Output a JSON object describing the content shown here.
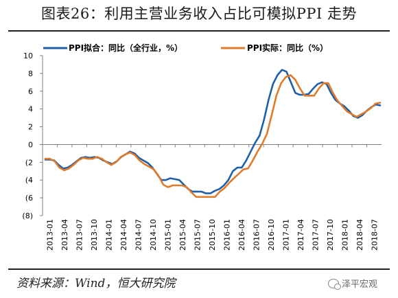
{
  "header": {
    "title": "图表26：利用主营业务收入占比可模拟PPI 走势"
  },
  "footer": {
    "source": "资料来源：Wind，恒大研究院",
    "watermark": "泽平宏观"
  },
  "colors": {
    "series1": "#1f5fa8",
    "series2": "#e07b2b",
    "axis": "#7f7f7f"
  },
  "chart_data": {
    "type": "line",
    "title": "",
    "xlabel": "",
    "ylabel": "",
    "ylim": [
      -8,
      10
    ],
    "yticks": [
      10,
      8,
      6,
      4,
      2,
      0,
      -2,
      -4,
      -6,
      -8
    ],
    "ytick_labels": [
      "10",
      "8",
      "6",
      "4",
      "2",
      "0",
      "(2",
      "(4",
      "(6",
      "(8)"
    ],
    "xtick_labels": [
      "2013-01",
      "2013-04",
      "2013-07",
      "2013-10",
      "2014-01",
      "2014-04",
      "2014-07",
      "2014-10",
      "2015-01",
      "2015-04",
      "2015-07",
      "2015-10",
      "2016-01",
      "2016-04",
      "2016-07",
      "2016-10",
      "2017-01",
      "2017-04",
      "2017-07",
      "2017-10",
      "2018-01",
      "2018-04",
      "2018-07"
    ],
    "legend_position": "top",
    "series": [
      {
        "name": "PPI拟合：同比（全行业，%）",
        "values": [
          -1.7,
          -1.7,
          -1.8,
          -2.3,
          -2.7,
          -2.6,
          -2.3,
          -1.9,
          -1.5,
          -1.4,
          -1.5,
          -1.4,
          -1.5,
          -1.8,
          -2.0,
          -2.2,
          -1.9,
          -1.4,
          -1.1,
          -0.8,
          -1.0,
          -1.5,
          -1.8,
          -2.1,
          -2.6,
          -3.3,
          -4.0,
          -4.0,
          -3.8,
          -3.9,
          -4.0,
          -4.5,
          -5.0,
          -5.3,
          -5.3,
          -5.3,
          -5.5,
          -5.5,
          -5.2,
          -5.0,
          -4.6,
          -4.0,
          -3.0,
          -2.6,
          -2.6,
          -1.8,
          -0.8,
          0.2,
          1.0,
          2.8,
          5.0,
          6.8,
          7.8,
          8.4,
          8.2,
          7.0,
          5.8,
          5.6,
          5.6,
          5.7,
          6.3,
          6.8,
          7.0,
          6.8,
          5.8,
          5.0,
          4.6,
          4.3,
          3.8,
          3.2,
          3.0,
          3.3,
          3.8,
          4.2,
          4.5,
          4.4
        ],
        "color": "#1f5fa8"
      },
      {
        "name": "PPI实际：同比（%）",
        "values": [
          -1.6,
          -1.6,
          -1.9,
          -2.6,
          -2.9,
          -2.7,
          -2.3,
          -1.8,
          -1.5,
          -1.6,
          -1.6,
          -1.4,
          -1.6,
          -2.0,
          -2.3,
          -2.0,
          -1.4,
          -1.1,
          -0.9,
          -1.2,
          -1.8,
          -2.2,
          -2.5,
          -2.8,
          -3.5,
          -4.5,
          -4.8,
          -4.6,
          -4.6,
          -4.6,
          -4.8,
          -5.4,
          -5.9,
          -5.9,
          -5.9,
          -5.9,
          -5.9,
          -5.3,
          -4.9,
          -4.3,
          -3.8,
          -3.3,
          -2.8,
          -2.7,
          -1.8,
          -0.8,
          0.1,
          1.2,
          3.3,
          5.5,
          6.9,
          7.6,
          7.8,
          7.3,
          6.3,
          5.5,
          5.5,
          5.5,
          6.3,
          6.9,
          6.9,
          5.8,
          4.9,
          4.3,
          3.7,
          3.4,
          3.1,
          3.4,
          3.7,
          4.1,
          4.6,
          4.7
        ],
        "color": "#e07b2b"
      }
    ]
  }
}
